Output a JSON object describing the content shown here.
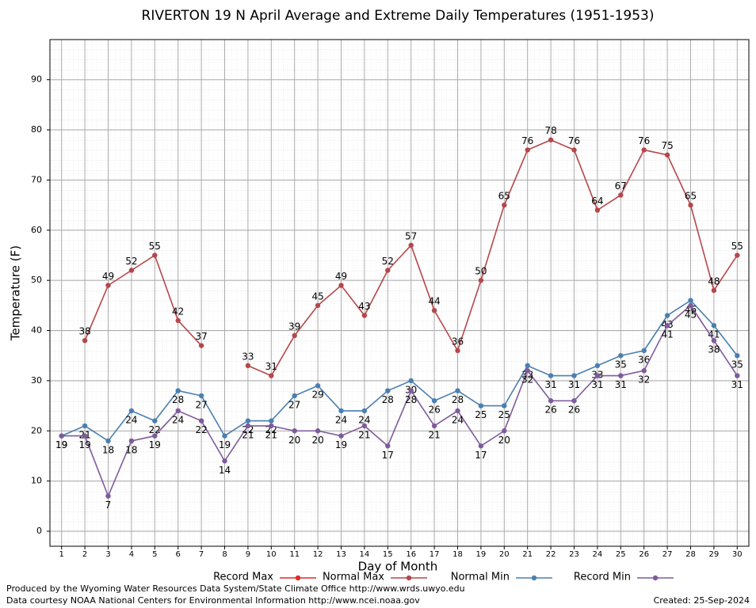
{
  "chart_data": {
    "type": "line",
    "title": "RIVERTON 19 N April Average and Extreme Daily Temperatures (1951-1953)",
    "xlabel": "Day of Month",
    "ylabel": "Temperature (F)",
    "x": [
      1,
      2,
      3,
      4,
      5,
      6,
      7,
      8,
      9,
      10,
      11,
      12,
      13,
      14,
      15,
      16,
      17,
      18,
      19,
      20,
      21,
      22,
      23,
      24,
      25,
      26,
      27,
      28,
      29,
      30
    ],
    "xlim": [
      0.5,
      30.5
    ],
    "xticks": [
      1,
      2,
      3,
      4,
      5,
      6,
      7,
      8,
      9,
      10,
      11,
      12,
      13,
      14,
      15,
      16,
      17,
      18,
      19,
      20,
      21,
      22,
      23,
      24,
      25,
      26,
      27,
      28,
      29,
      30
    ],
    "ylim": [
      -3,
      98
    ],
    "yticks": [
      0,
      10,
      20,
      30,
      40,
      50,
      60,
      70,
      80,
      90
    ],
    "grid": true,
    "series": [
      {
        "name": "Record Max",
        "color": "#e02a2a",
        "values": [
          null,
          null,
          null,
          null,
          null,
          null,
          null,
          null,
          null,
          null,
          null,
          null,
          null,
          null,
          null,
          null,
          null,
          null,
          null,
          null,
          null,
          null,
          null,
          null,
          null,
          null,
          null,
          null,
          null,
          null
        ]
      },
      {
        "name": "Normal Max",
        "color": "#b5474b",
        "values": [
          null,
          38,
          49,
          52,
          55,
          42,
          37,
          null,
          33,
          31,
          39,
          45,
          49,
          43,
          52,
          57,
          44,
          36,
          50,
          65,
          76,
          78,
          76,
          64,
          67,
          76,
          75,
          65,
          48,
          55
        ]
      },
      {
        "name": "Normal Min",
        "color": "#4a7fb0",
        "values": [
          19,
          21,
          18,
          24,
          22,
          28,
          27,
          19,
          22,
          22,
          27,
          29,
          24,
          24,
          28,
          30,
          26,
          28,
          25,
          25,
          33,
          31,
          31,
          33,
          35,
          36,
          43,
          46,
          41,
          35
        ]
      },
      {
        "name": "Record Min",
        "color": "#7f5a9c",
        "values": [
          19,
          19,
          7,
          18,
          19,
          24,
          22,
          14,
          21,
          21,
          20,
          20,
          19,
          21,
          17,
          28,
          21,
          24,
          17,
          20,
          32,
          26,
          26,
          31,
          31,
          32,
          41,
          45,
          38,
          31
        ]
      }
    ],
    "notes": [
      "Produced by the Wyoming Water Resources Data System/State Climate Office http://www.wrds.uwyo.edu",
      "Data courtesy NOAA National Centers for Environmental Information http://www.ncei.noaa.gov"
    ],
    "created": "Created:  25-Sep-2024"
  }
}
